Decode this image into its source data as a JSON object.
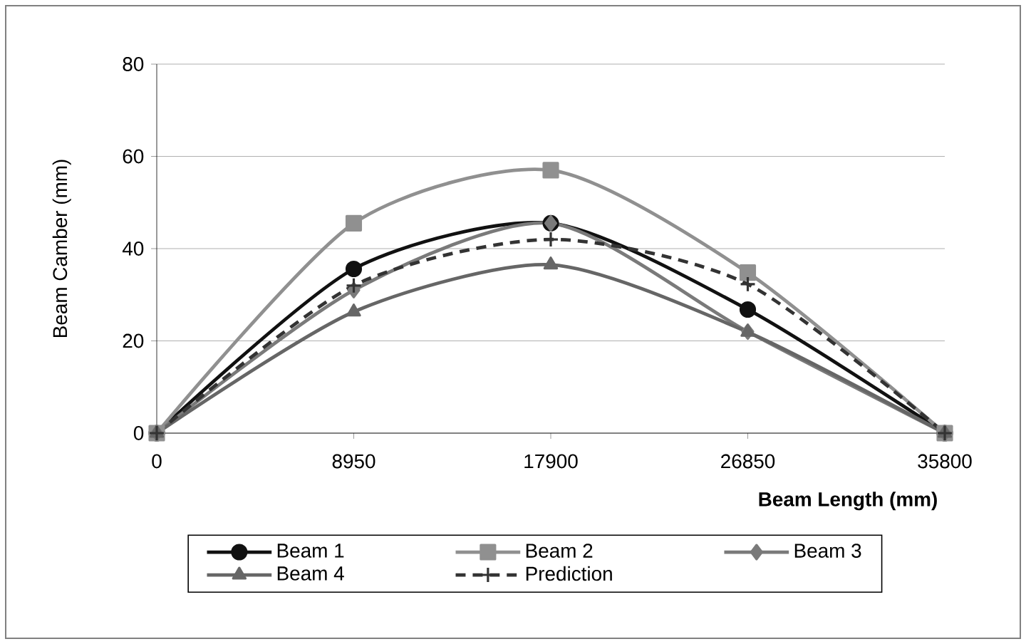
{
  "chart_data": {
    "type": "line",
    "xlabel": "Beam Length (mm)",
    "ylabel": "Beam Camber (mm)",
    "x": [
      0,
      8950,
      17900,
      26850,
      35800
    ],
    "xlim": [
      0,
      35800
    ],
    "xticks": [
      0,
      8950,
      17900,
      26850,
      35800
    ],
    "ylim": [
      0,
      80
    ],
    "yticks": [
      0,
      20,
      40,
      60,
      80
    ],
    "grid": "y",
    "legend": "bottom",
    "series": [
      {
        "name": "Beam 1",
        "color": "#111111",
        "marker": "circle",
        "line_style": "solid",
        "values": [
          0,
          35.6,
          45.5,
          26.8,
          0
        ]
      },
      {
        "name": "Beam 2",
        "color": "#909090",
        "marker": "square",
        "line_style": "solid",
        "values": [
          0,
          45.5,
          57,
          34.8,
          0
        ]
      },
      {
        "name": "Beam 3",
        "color": "#7a7a7a",
        "marker": "diamond",
        "line_style": "solid",
        "values": [
          0,
          31,
          45.5,
          22,
          0
        ]
      },
      {
        "name": "Beam 4",
        "color": "#666666",
        "marker": "triangle",
        "line_style": "solid",
        "values": [
          0,
          26.3,
          36.5,
          21.9,
          0
        ]
      },
      {
        "name": "Prediction",
        "color": "#333333",
        "marker": "cross",
        "line_style": "dashed",
        "values": [
          0,
          32,
          42,
          32.3,
          0
        ]
      }
    ]
  }
}
